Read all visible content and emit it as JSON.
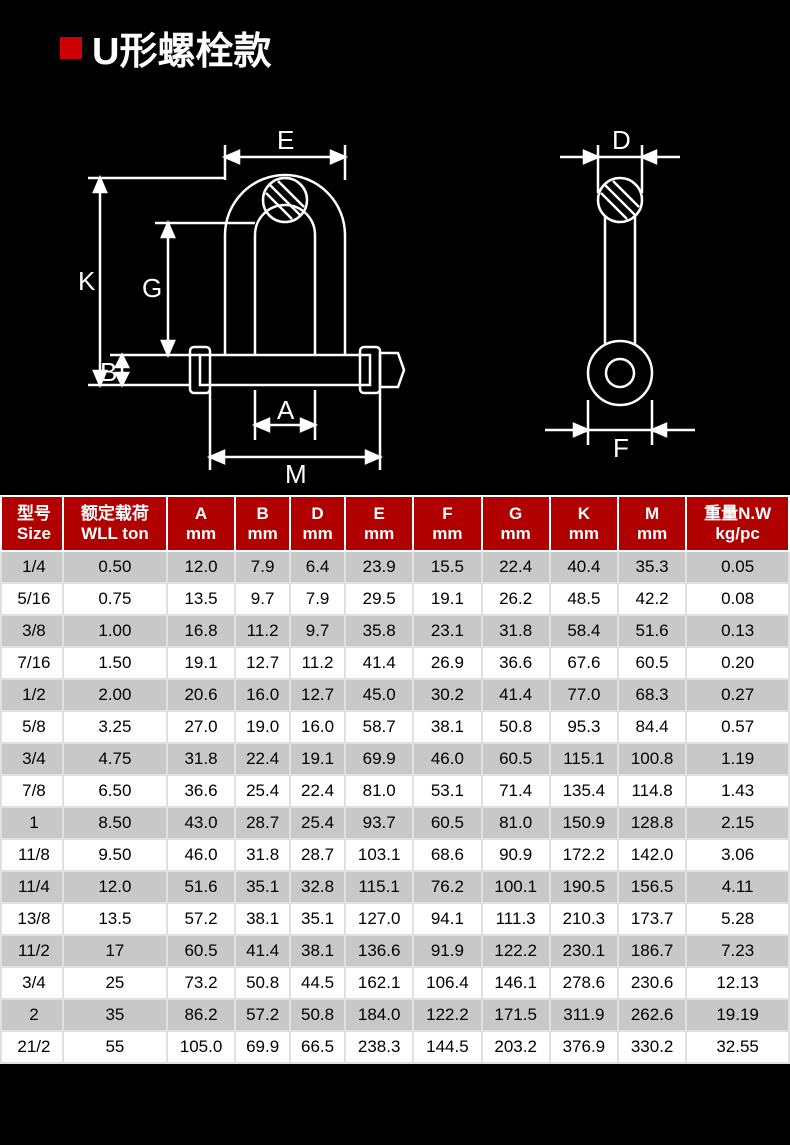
{
  "title": "U形螺栓款",
  "colors": {
    "accent": "#c00",
    "header_bg": "#b00000",
    "bg": "#000",
    "row": "#fff",
    "row_alt": "#c8c8c8",
    "line": "#fff"
  },
  "diagram": {
    "labels": [
      "E",
      "K",
      "G",
      "B",
      "A",
      "M",
      "D",
      "F"
    ],
    "stroke": "#ffffff",
    "stroke_width": 2
  },
  "table": {
    "headers": [
      {
        "l1": "型号",
        "l2": "Size"
      },
      {
        "l1": "额定载荷",
        "l2": "WLL ton"
      },
      {
        "l1": "A",
        "l2": "mm"
      },
      {
        "l1": "B",
        "l2": "mm"
      },
      {
        "l1": "D",
        "l2": "mm"
      },
      {
        "l1": "E",
        "l2": "mm"
      },
      {
        "l1": "F",
        "l2": "mm"
      },
      {
        "l1": "G",
        "l2": "mm"
      },
      {
        "l1": "K",
        "l2": "mm"
      },
      {
        "l1": "M",
        "l2": "mm"
      },
      {
        "l1": "重量N.W",
        "l2": "kg/pc"
      }
    ],
    "rows": [
      [
        "1/4",
        "0.50",
        "12.0",
        "7.9",
        "6.4",
        "23.9",
        "15.5",
        "22.4",
        "40.4",
        "35.3",
        "0.05"
      ],
      [
        "5/16",
        "0.75",
        "13.5",
        "9.7",
        "7.9",
        "29.5",
        "19.1",
        "26.2",
        "48.5",
        "42.2",
        "0.08"
      ],
      [
        "3/8",
        "1.00",
        "16.8",
        "11.2",
        "9.7",
        "35.8",
        "23.1",
        "31.8",
        "58.4",
        "51.6",
        "0.13"
      ],
      [
        "7/16",
        "1.50",
        "19.1",
        "12.7",
        "11.2",
        "41.4",
        "26.9",
        "36.6",
        "67.6",
        "60.5",
        "0.20"
      ],
      [
        "1/2",
        "2.00",
        "20.6",
        "16.0",
        "12.7",
        "45.0",
        "30.2",
        "41.4",
        "77.0",
        "68.3",
        "0.27"
      ],
      [
        "5/8",
        "3.25",
        "27.0",
        "19.0",
        "16.0",
        "58.7",
        "38.1",
        "50.8",
        "95.3",
        "84.4",
        "0.57"
      ],
      [
        "3/4",
        "4.75",
        "31.8",
        "22.4",
        "19.1",
        "69.9",
        "46.0",
        "60.5",
        "115.1",
        "100.8",
        "1.19"
      ],
      [
        "7/8",
        "6.50",
        "36.6",
        "25.4",
        "22.4",
        "81.0",
        "53.1",
        "71.4",
        "135.4",
        "114.8",
        "1.43"
      ],
      [
        "1",
        "8.50",
        "43.0",
        "28.7",
        "25.4",
        "93.7",
        "60.5",
        "81.0",
        "150.9",
        "128.8",
        "2.15"
      ],
      [
        "11/8",
        "9.50",
        "46.0",
        "31.8",
        "28.7",
        "103.1",
        "68.6",
        "90.9",
        "172.2",
        "142.0",
        "3.06"
      ],
      [
        "11/4",
        "12.0",
        "51.6",
        "35.1",
        "32.8",
        "115.1",
        "76.2",
        "100.1",
        "190.5",
        "156.5",
        "4.11"
      ],
      [
        "13/8",
        "13.5",
        "57.2",
        "38.1",
        "35.1",
        "127.0",
        "94.1",
        "111.3",
        "210.3",
        "173.7",
        "5.28"
      ],
      [
        "11/2",
        "17",
        "60.5",
        "41.4",
        "38.1",
        "136.6",
        "91.9",
        "122.2",
        "230.1",
        "186.7",
        "7.23"
      ],
      [
        "3/4",
        "25",
        "73.2",
        "50.8",
        "44.5",
        "162.1",
        "106.4",
        "146.1",
        "278.6",
        "230.6",
        "12.13"
      ],
      [
        "2",
        "35",
        "86.2",
        "57.2",
        "50.8",
        "184.0",
        "122.2",
        "171.5",
        "311.9",
        "262.6",
        "19.19"
      ],
      [
        "21/2",
        "55",
        "105.0",
        "69.9",
        "66.5",
        "238.3",
        "144.5",
        "203.2",
        "376.9",
        "330.2",
        "32.55"
      ]
    ]
  }
}
